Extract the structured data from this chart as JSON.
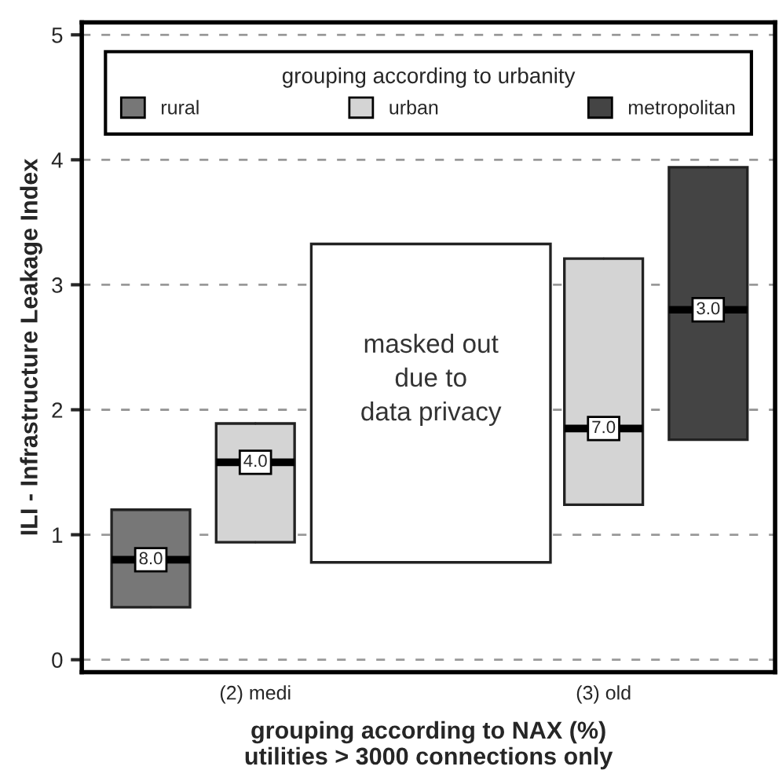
{
  "chart_data": {
    "type": "box",
    "xlabel": "grouping according to NAX (%)\nutilities > 3000 connections only",
    "ylabel": "ILI - Infrastructure Leakage Index",
    "legend_title": "grouping according to urbanity",
    "categories": [
      "(2) medi",
      "(3) old"
    ],
    "series": [
      {
        "name": "rural",
        "color": "#777777",
        "boxes": [
          {
            "low": 0.42,
            "q1": 0.42,
            "median": 0.8,
            "q3": 1.2,
            "high": 1.2
          },
          null
        ],
        "value_labels": [
          "8.0",
          null
        ]
      },
      {
        "name": "urban",
        "color": "#d4d4d4",
        "boxes": [
          {
            "low": 0.94,
            "q1": 0.94,
            "median": 1.58,
            "q3": 1.89,
            "high": 1.89
          },
          {
            "low": 1.24,
            "q1": 1.24,
            "median": 1.85,
            "q3": 3.21,
            "high": 3.21
          }
        ],
        "value_labels": [
          "4.0",
          "7.0"
        ]
      },
      {
        "name": "metropolitan",
        "color": "#444444",
        "boxes": [
          null,
          {
            "low": 1.76,
            "q1": 1.76,
            "median": 2.8,
            "q3": 3.94,
            "high": 3.94
          }
        ],
        "value_labels": [
          null,
          "3.0"
        ]
      }
    ],
    "annotations": [
      "masked out\ndue to\ndata privacy"
    ],
    "ylim": [
      -0.1,
      5.1
    ],
    "yticks": [
      0,
      1,
      2,
      3,
      4,
      5
    ],
    "grid": "y",
    "legend": "top"
  }
}
